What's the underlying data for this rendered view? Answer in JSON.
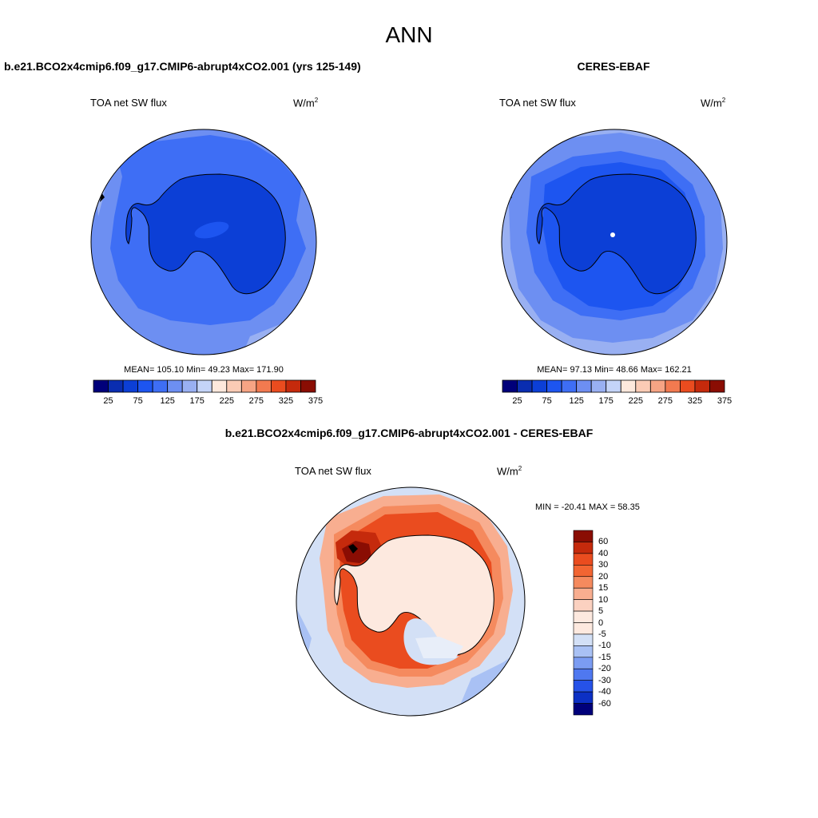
{
  "page": {
    "title": "ANN"
  },
  "panels": {
    "model": {
      "title": "b.e21.BCO2x4cmip6.f09_g17.CMIP6-abrupt4xCO2.001 (yrs 125-149)",
      "variable": "TOA net SW flux",
      "units": "W/m",
      "units_sup": "2",
      "stats": "MEAN= 105.10  Min=  49.23  Max= 171.90"
    },
    "obs": {
      "title": "CERES-EBAF",
      "variable": "TOA net SW flux",
      "units": "W/m",
      "units_sup": "2",
      "stats": "MEAN=  97.13  Min=  48.66  Max= 162.21"
    },
    "diff": {
      "title": "b.e21.BCO2x4cmip6.f09_g17.CMIP6-abrupt4xCO2.001 - CERES-EBAF",
      "variable": "TOA net SW flux",
      "units": "W/m",
      "units_sup": "2",
      "stats": "MIN = -20.41 MAX =  58.35"
    }
  },
  "colorbars": {
    "abs": {
      "colors": [
        "#00007a",
        "#0a2db0",
        "#0c3fd6",
        "#1d55f0",
        "#3e6ef5",
        "#6d8ff2",
        "#99b0f2",
        "#c4d4f8",
        "#fde8dc",
        "#fbcbb5",
        "#f6a484",
        "#f27a50",
        "#ea4c1f",
        "#c52a0c",
        "#8a0d03"
      ],
      "labels": [
        "25",
        "75",
        "125",
        "175",
        "225",
        "275",
        "325",
        "375"
      ]
    },
    "diff": {
      "colors": [
        "#8a0d03",
        "#c52a0c",
        "#ea4c1f",
        "#f26532",
        "#f58a5e",
        "#f8ae90",
        "#fbd1c0",
        "#fde9df",
        "#d3e0f6",
        "#a9c1f4",
        "#7b9cf2",
        "#4f78f0",
        "#2652e8",
        "#0c30c4",
        "#00007a"
      ],
      "labels": [
        "60",
        "40",
        "30",
        "20",
        "15",
        "10",
        "5",
        "0",
        "-5",
        "-10",
        "-15",
        "-20",
        "-30",
        "-40",
        "-60"
      ]
    }
  }
}
